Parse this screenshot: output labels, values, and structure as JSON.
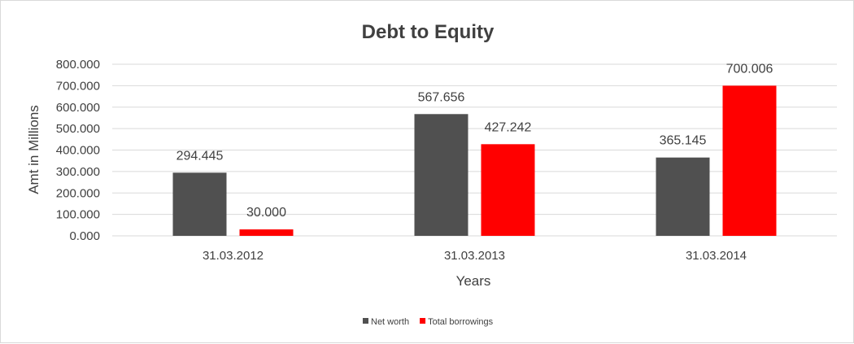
{
  "chart_data": {
    "type": "bar",
    "title": "Debt to Equity",
    "xlabel": "Years",
    "ylabel": "Amt in Millions",
    "categories": [
      "31.03.2012",
      "31.03.2013",
      "31.03.2014"
    ],
    "series": [
      {
        "name": "Net worth",
        "color": "#505050",
        "values": [
          294.445,
          567.656,
          365.145
        ],
        "labels": [
          "294.445",
          "567.656",
          "365.145"
        ]
      },
      {
        "name": "Total borrowings",
        "color": "#ff0000",
        "values": [
          30.0,
          427.242,
          700.006
        ],
        "labels": [
          "30.000",
          "427.242",
          "700.006"
        ]
      }
    ],
    "ylim": [
      0,
      800
    ],
    "yticks": [
      0,
      100,
      200,
      300,
      400,
      500,
      600,
      700,
      800
    ],
    "ytick_labels": [
      "0.000",
      "100.000",
      "200.000",
      "300.000",
      "400.000",
      "500.000",
      "600.000",
      "700.000",
      "800.000"
    ],
    "grid": true,
    "legend_position": "bottom"
  }
}
